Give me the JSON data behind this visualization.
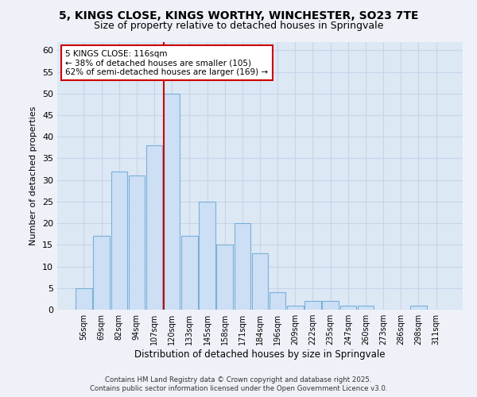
{
  "title_line1": "5, KINGS CLOSE, KINGS WORTHY, WINCHESTER, SO23 7TE",
  "title_line2": "Size of property relative to detached houses in Springvale",
  "xlabel": "Distribution of detached houses by size in Springvale",
  "ylabel": "Number of detached properties",
  "categories": [
    "56sqm",
    "69sqm",
    "82sqm",
    "94sqm",
    "107sqm",
    "120sqm",
    "133sqm",
    "145sqm",
    "158sqm",
    "171sqm",
    "184sqm",
    "196sqm",
    "209sqm",
    "222sqm",
    "235sqm",
    "247sqm",
    "260sqm",
    "273sqm",
    "286sqm",
    "298sqm",
    "311sqm"
  ],
  "values": [
    5,
    17,
    32,
    31,
    38,
    50,
    17,
    25,
    15,
    20,
    13,
    4,
    1,
    2,
    2,
    1,
    1,
    0,
    0,
    1,
    0
  ],
  "bar_color": "#ccdff5",
  "bar_edge_color": "#7ab0d8",
  "annotation_title": "5 KINGS CLOSE: 116sqm",
  "annotation_line2": "← 38% of detached houses are smaller (105)",
  "annotation_line3": "62% of semi-detached houses are larger (169) →",
  "annotation_box_color": "#ffffff",
  "annotation_box_edge": "#cc0000",
  "ylim": [
    0,
    62
  ],
  "yticks": [
    0,
    5,
    10,
    15,
    20,
    25,
    30,
    35,
    40,
    45,
    50,
    55,
    60
  ],
  "grid_color": "#c8d4e8",
  "bg_color": "#dde8f5",
  "fig_bg_color": "#eef2f8",
  "footer_line1": "Contains HM Land Registry data © Crown copyright and database right 2025.",
  "footer_line2": "Contains public sector information licensed under the Open Government Licence v3.0.",
  "vline_color": "#cc0000",
  "vline_index": 5
}
